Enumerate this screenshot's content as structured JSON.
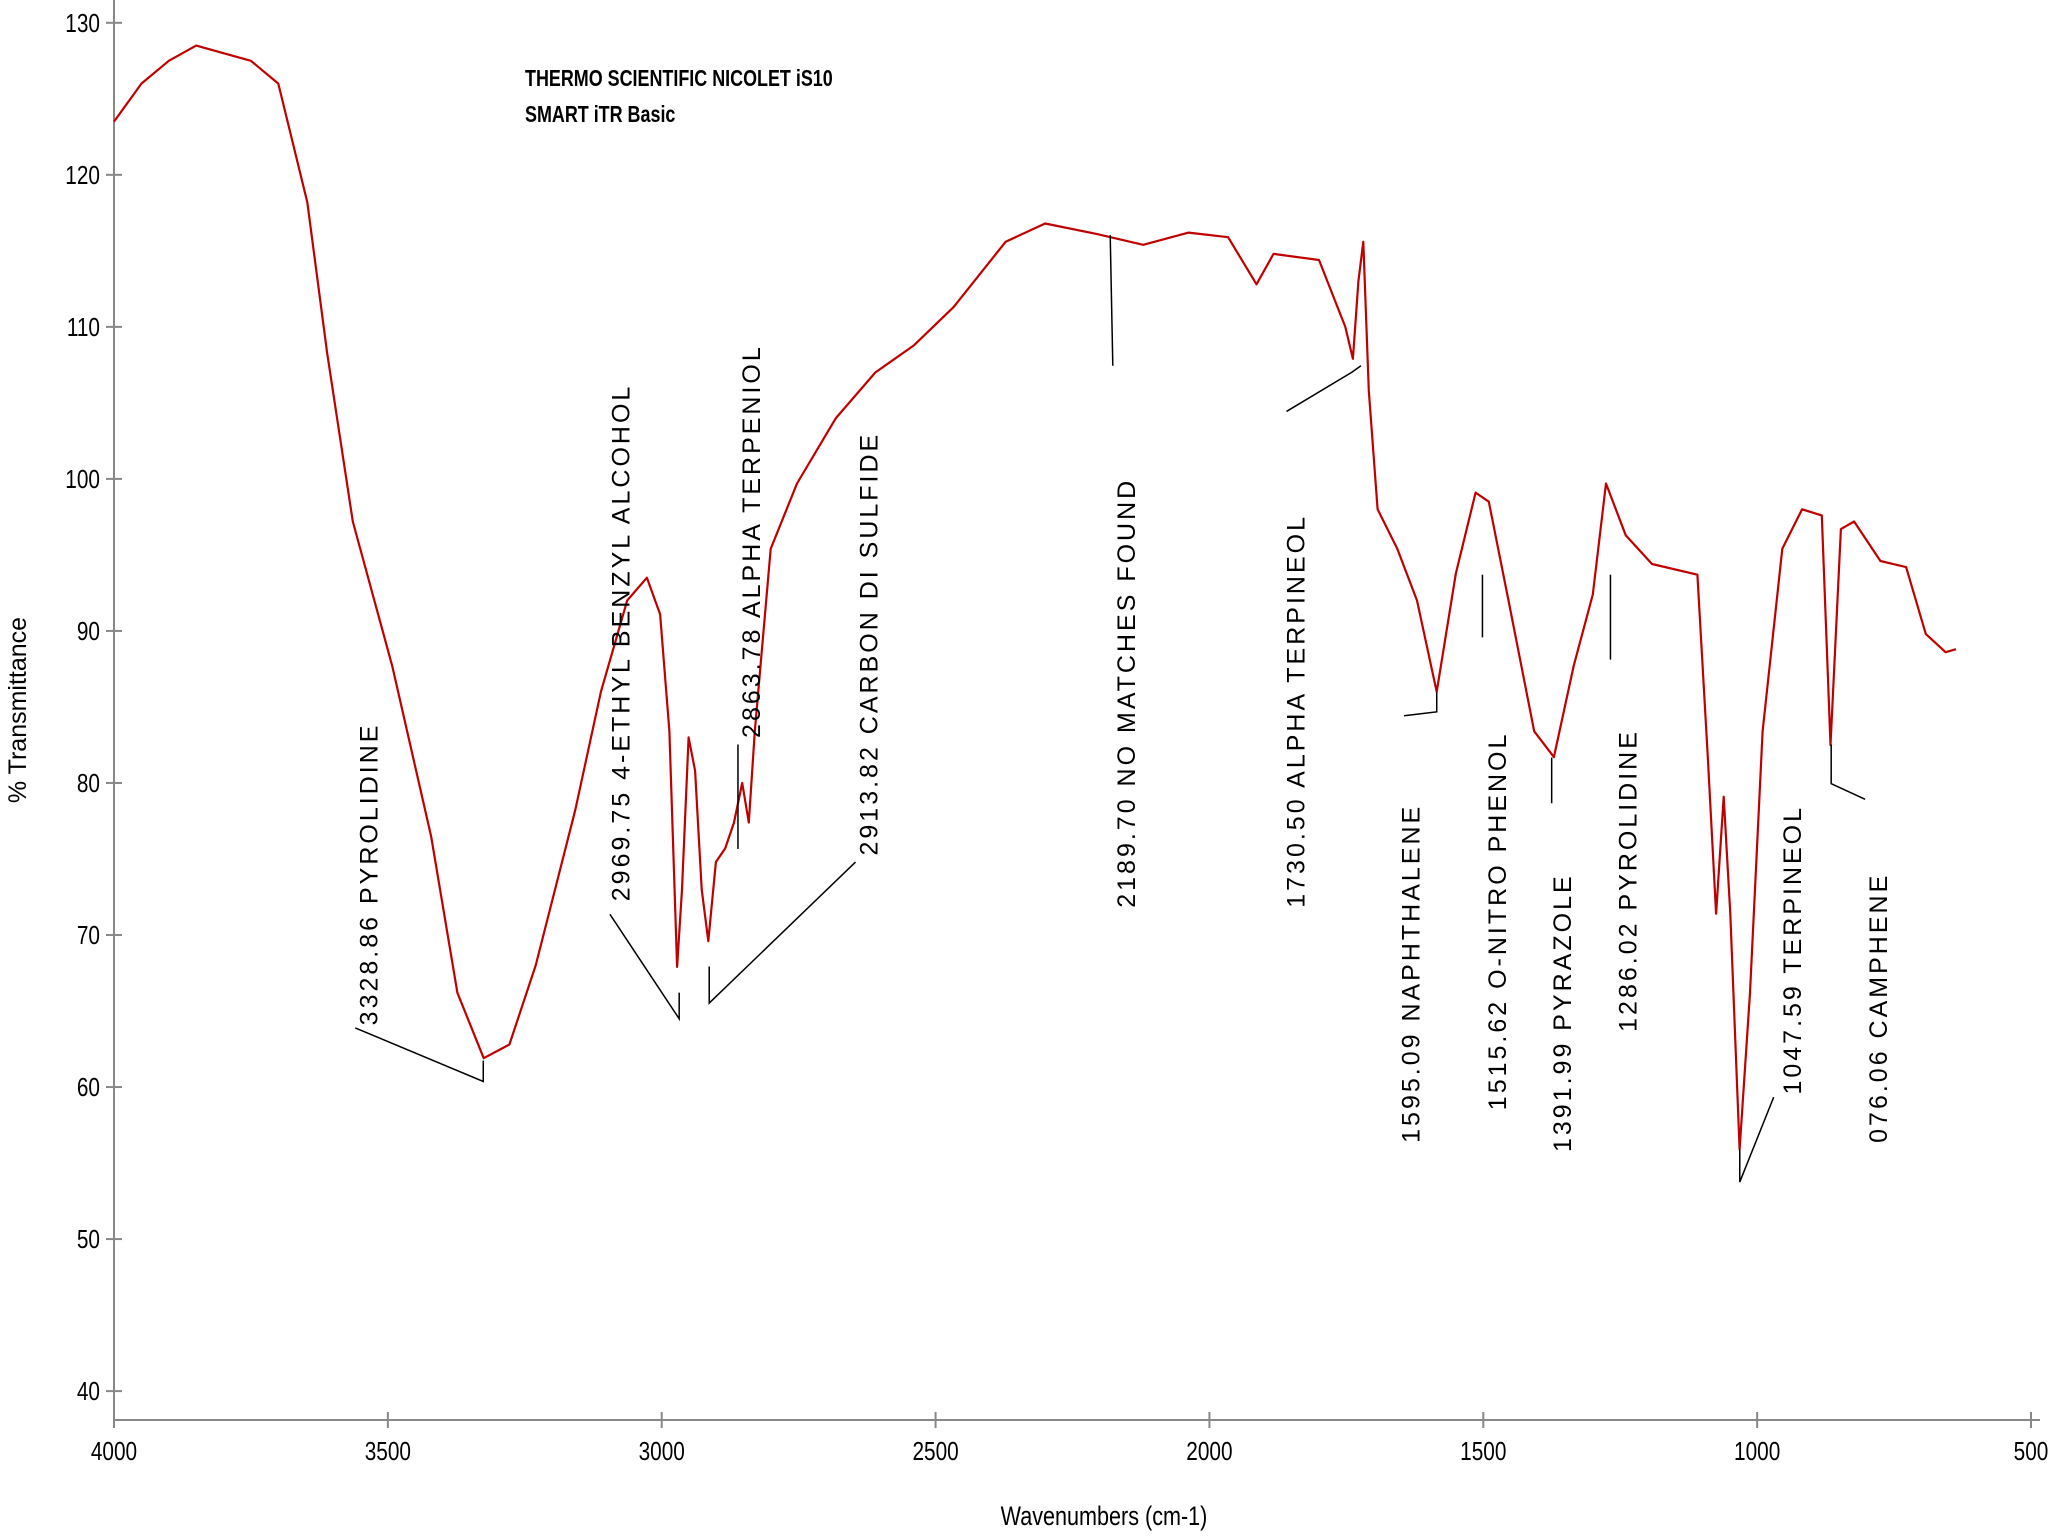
{
  "chart_data": {
    "type": "line",
    "title": "THERMO SCIENTIFIC NICOLET iS10",
    "subtitle": "SMART iTR Basic",
    "x_label": "Wavenumbers (cm-1)",
    "y_label": "% Transmittance",
    "color": "#c00000",
    "xlim": [
      4000,
      500
    ],
    "ylim": [
      38.1,
      131.5
    ],
    "xticks": [
      4000,
      3500,
      3000,
      2500,
      2000,
      1500,
      1000,
      500
    ],
    "yticks": [
      40,
      50,
      60,
      70,
      80,
      90,
      100,
      110,
      120,
      130
    ],
    "x": [
      4000,
      3950,
      3900,
      3850,
      3800,
      3750,
      3700,
      3647,
      3611,
      3564,
      3492,
      3421,
      3373,
      3325,
      3278,
      3230,
      3158,
      3111,
      3063,
      3027,
      3003,
      2986,
      2972,
      2963,
      2951,
      2939,
      2927,
      2915,
      2901,
      2884,
      2868,
      2853,
      2841,
      2830,
      2801,
      2753,
      2682,
      2610,
      2539,
      2467,
      2372,
      2300,
      2205,
      2121,
      2038,
      1966,
      1914,
      1883,
      1800,
      1752,
      1738,
      1728,
      1719,
      1709,
      1693,
      1657,
      1621,
      1585,
      1550,
      1514,
      1490,
      1454,
      1407,
      1371,
      1335,
      1300,
      1276,
      1240,
      1192,
      1109,
      1090,
      1075,
      1061,
      1049,
      1032,
      1013,
      990,
      954,
      918,
      882,
      866,
      847,
      823,
      775,
      728,
      692,
      656,
      637
    ],
    "values": [
      123.5,
      126,
      127.5,
      128.5,
      128,
      127.5,
      126,
      118.2,
      108.3,
      97.2,
      87.7,
      76.5,
      66.2,
      61.9,
      62.8,
      68,
      78.2,
      86,
      92,
      93.5,
      91.1,
      83.4,
      67.9,
      73,
      83,
      80.8,
      73,
      69.6,
      74.8,
      75.7,
      77.4,
      80,
      77.4,
      83.4,
      95.4,
      99.7,
      104,
      107,
      108.8,
      111.3,
      115.6,
      116.8,
      116.1,
      115.4,
      116.2,
      115.9,
      112.8,
      114.8,
      114.4,
      110,
      107.9,
      113,
      115.6,
      105.8,
      98,
      95.4,
      92,
      86,
      93.8,
      99.1,
      98.5,
      92,
      83.4,
      81.7,
      87.7,
      92.4,
      99.7,
      96.3,
      94.4,
      93.7,
      81.7,
      71.4,
      79.1,
      71.4,
      55.9,
      66.2,
      83.4,
      95.4,
      98,
      97.6,
      82.5,
      96.7,
      97.2,
      94.6,
      94.2,
      89.8,
      88.6,
      88.8
    ],
    "annotations": [
      "3328.86 PYROLIDINE",
      "2969.75 4-ETHYL BENZYL ALCOHOL",
      "2863.78 ALPHA TERPENIOL",
      "2913.82 CARBON DI SULFIDE",
      "2189.70 NO MATCHES FOUND",
      "1730.50 ALPHA TERPINEOL",
      "1595.09 NAPHTHALENE",
      "1515.62 O-NITRO PHENOL",
      "1391.99 PYRAZOLE",
      "1286.02 PYROLIDINE",
      "1047.59 TERPINEOL",
      "076.06 CAMPHENE"
    ]
  }
}
